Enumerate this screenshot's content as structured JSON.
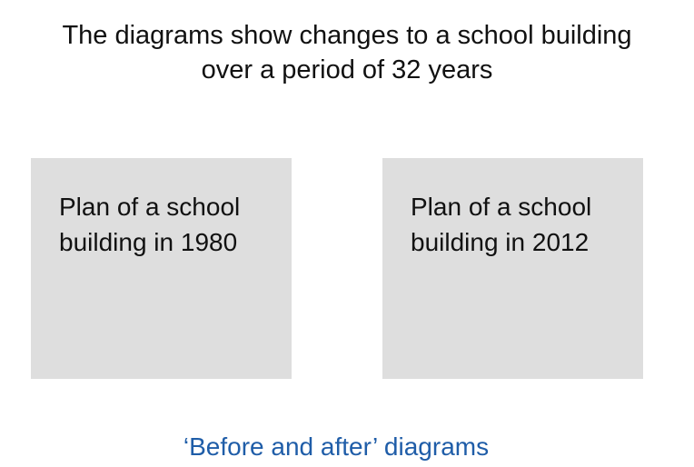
{
  "title": {
    "line1": "The diagrams show changes to a school building",
    "line2": "over a period of 32 years"
  },
  "cards": [
    {
      "line1": "Plan of a school",
      "line2": "building in 1980"
    },
    {
      "line1": "Plan of a school",
      "line2": "building in 2012"
    }
  ],
  "subtitle": "‘Before and after’ diagrams",
  "colors": {
    "card_background": "#dedede",
    "subtitle_text": "#1f5da8",
    "body_text": "#111111"
  }
}
